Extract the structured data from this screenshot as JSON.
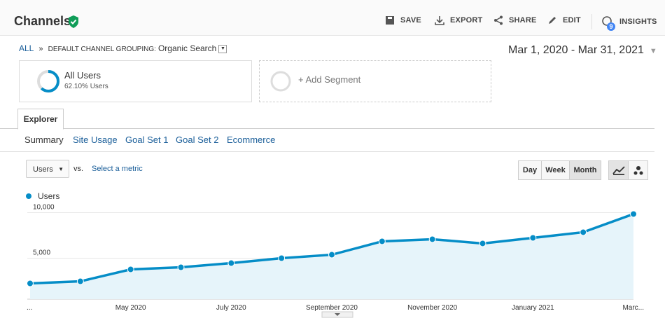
{
  "header": {
    "title": "Channels",
    "actions": [
      "SAVE",
      "EXPORT",
      "SHARE",
      "EDIT",
      "INSIGHTS"
    ],
    "insights_badge": 9
  },
  "breadcrumb": {
    "root": "ALL",
    "path": "DEFAULT CHANNEL GROUPING:",
    "value": "Organic Search"
  },
  "date_range": "Mar 1, 2020 - Mar 31, 2021",
  "segments": [
    {
      "name": "All Users",
      "detail": "62.10% Users"
    }
  ],
  "add_segment": "+ Add Segment",
  "tabs": {
    "active": "Explorer",
    "subtabs": [
      "Summary",
      "Site Usage",
      "Goal Set 1",
      "Goal Set 2",
      "Ecommerce"
    ]
  },
  "controls": {
    "metric": "Users",
    "vs": "vs.",
    "select": "Select a metric",
    "granularity": [
      "Day",
      "Week",
      "Month"
    ]
  },
  "chart_data": {
    "type": "line",
    "categories": [
      "...",
      null,
      "May 2020",
      null,
      "July 2020",
      null,
      "September 2020",
      null,
      "November 2020",
      null,
      "January 2021",
      null,
      "Marc..."
    ],
    "series": [
      {
        "name": "Users",
        "color": "#058dc7",
        "values": [
          2230,
          2460,
          3770,
          4000,
          4460,
          5000,
          5380,
          6850,
          7080,
          6620,
          7230,
          7850,
          9850
        ]
      }
    ],
    "ylim": [
      500,
      10500
    ],
    "yticks": [
      {
        "value": 5000,
        "label": "5,000"
      },
      {
        "value": 10000,
        "label": "10,000"
      }
    ],
    "grid": true
  }
}
